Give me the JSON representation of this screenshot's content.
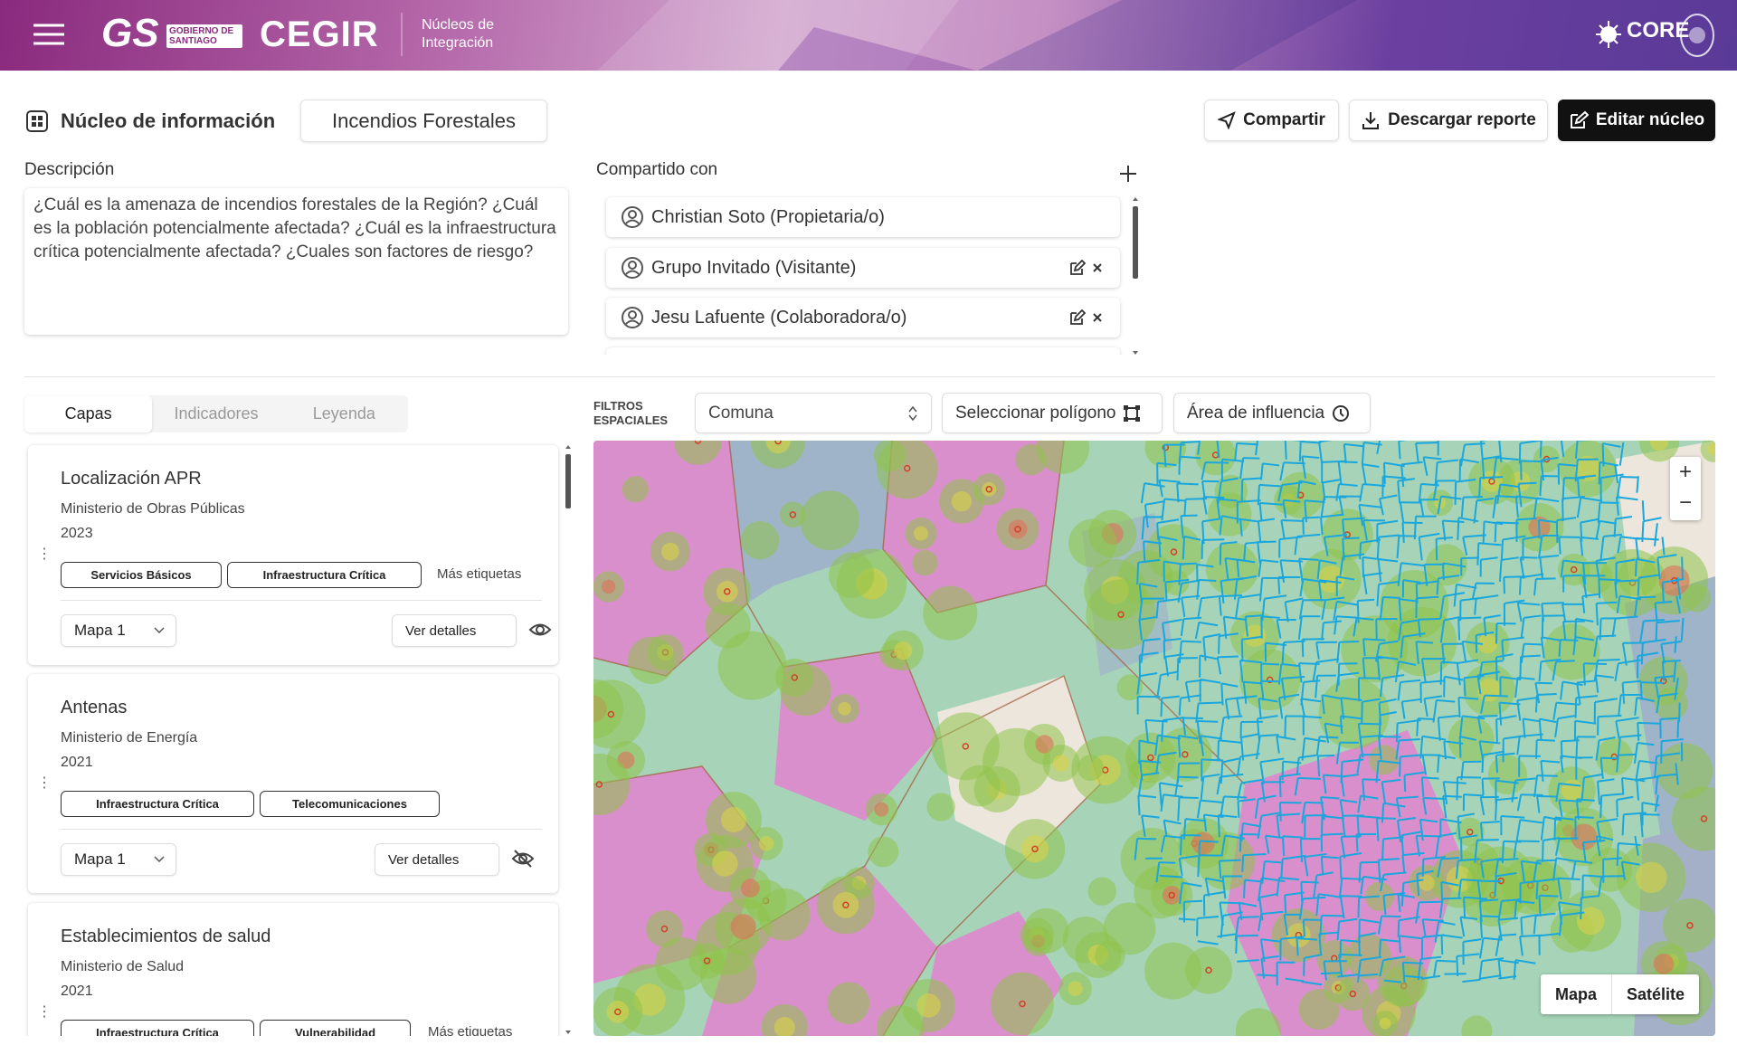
{
  "header": {
    "logo_gs": "GS",
    "logo_gs_sub": "GOBIERNO DE SANTIAGO",
    "logo_cegir": "CEGIR",
    "section": "Núcleos de Integración",
    "logo_core": "CORE"
  },
  "toolbar": {
    "label": "Núcleo de información",
    "name": "Incendios Forestales",
    "buttons": [
      "Compartir",
      "Descargar reporte",
      "Editar núcleo"
    ]
  },
  "description": {
    "label": "Descripción",
    "text": "¿Cuál es la amenaza de incendios forestales de la Región? ¿Cuál es la población potencialmente afectada? ¿Cuál es la infraestructura crítica potencialmente afectada? ¿Cuales son factores de riesgo?"
  },
  "shared": {
    "label": "Compartido con",
    "people": [
      "Christian Soto (Propietaria/o)",
      "Grupo Invitado (Visitante)",
      "Jesu Lafuente (Colaboradora/o)"
    ]
  },
  "tabs": [
    "Capas",
    "Indicadores",
    "Leyenda"
  ],
  "filters": {
    "label": "FILTROS ESPACIALES",
    "comuna": "Comuna",
    "polygon": "Seleccionar polígono",
    "influence": "Área de influencia"
  },
  "layers": [
    {
      "title": "Localización APR",
      "source": "Ministerio de Obras Públicas",
      "year": "2023",
      "tags": [
        "Servicios Básicos",
        "Infraestructura Crítica"
      ],
      "more": "Más etiquetas",
      "map": "Mapa 1",
      "details": "Ver detalles"
    },
    {
      "title": "Antenas",
      "source": "Ministerio de Energía",
      "year": "2021",
      "tags": [
        "Infraestructura Crítica",
        "Telecomunicaciones"
      ],
      "map": "Mapa 1",
      "details": "Ver detalles"
    },
    {
      "title": "Establecimientos de salud",
      "source": "Ministerio de Salud",
      "year": "2021",
      "tags": [
        "Infraestructura Crítica",
        "Vulnerabilidad"
      ],
      "more": "Más etiquetas"
    }
  ],
  "map": {
    "zoom_in": "+",
    "zoom_out": "−",
    "types": [
      "Mapa",
      "Satélite"
    ]
  }
}
